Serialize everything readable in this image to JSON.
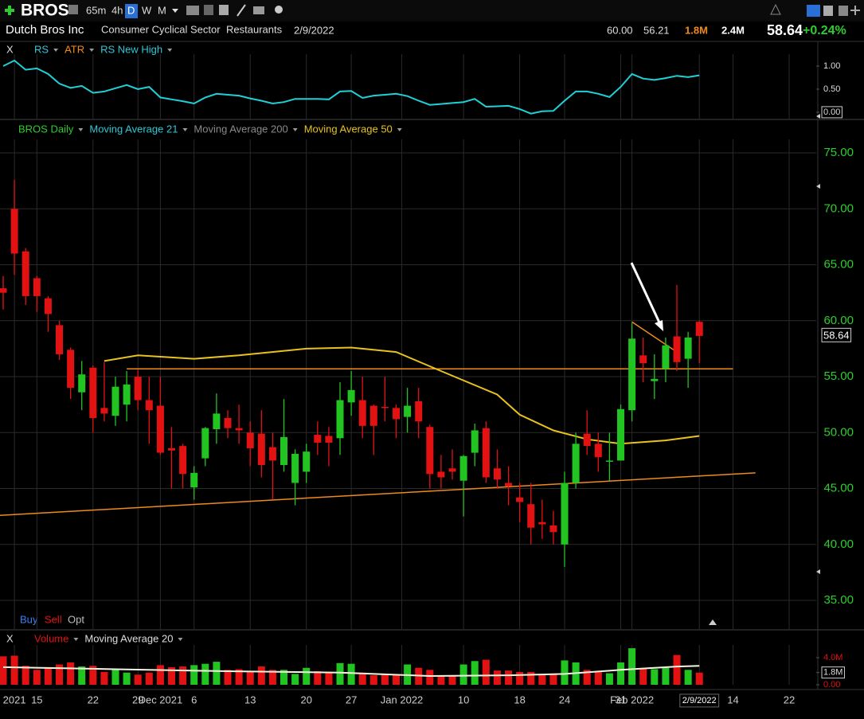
{
  "header": {
    "symbol": "BROS",
    "intervals": [
      "65m",
      "4h",
      "D",
      "W",
      "M"
    ],
    "company": "Dutch Bros Inc",
    "sector": "Consumer Cyclical Sector",
    "industry": "Restaurants",
    "date": "2/9/2022",
    "high": "60.00",
    "low": "56.21",
    "volume": "1.8M",
    "avg_volume": "2.4M",
    "last": "58.64",
    "change": "+0.24%"
  },
  "ui": {
    "close_label": "X",
    "trade_buttons": [
      "Buy",
      "Sell",
      "Opt"
    ]
  },
  "chart_data": [
    {
      "type": "candlestick",
      "legend": [
        {
          "name": "BROS Daily",
          "color": "#2ecc2e"
        },
        {
          "name": "Moving Average 21",
          "color": "#2fc7d6"
        },
        {
          "name": "Moving Average 200",
          "color": "#8a8a8a"
        },
        {
          "name": "Moving Average 50",
          "color": "#e8c21e"
        }
      ],
      "up_color": "#22c422",
      "down_color": "#e21212",
      "x": [
        0,
        1,
        2,
        3,
        4,
        5,
        6,
        7,
        8,
        9,
        10,
        11,
        12,
        13,
        14,
        15,
        16,
        17,
        18,
        19,
        20,
        21,
        22,
        23,
        24,
        25,
        26,
        27,
        28,
        29,
        30,
        31,
        32,
        33,
        34,
        35,
        36,
        37,
        38,
        39,
        40,
        41,
        42,
        43,
        44,
        45,
        46,
        47,
        48,
        49,
        50,
        51,
        52,
        53,
        54,
        55,
        56,
        57,
        58,
        59,
        60,
        61,
        62
      ],
      "open": [
        62.9,
        70.0,
        66.2,
        63.8,
        62.0,
        59.6,
        57.4,
        53.6,
        55.8,
        52.2,
        51.5,
        52.5,
        55.0,
        52.9,
        52.4,
        48.6,
        48.8,
        45.1,
        47.7,
        50.3,
        51.3,
        50.4,
        50.0,
        49.9,
        48.7,
        47.1,
        45.5,
        46.5,
        49.8,
        49.7,
        49.5,
        52.7,
        52.9,
        52.4,
        52.3,
        52.2,
        51.4,
        52.8,
        50.5,
        46.5,
        46.8,
        45.7,
        48.2,
        50.4,
        46.8,
        45.5,
        44.2,
        43.6,
        42.0,
        41.7,
        40.0,
        45.5,
        49.9,
        49.0,
        47.4,
        47.5,
        52.0,
        56.9,
        54.6,
        55.7,
        58.6,
        56.6,
        59.9
      ],
      "high": [
        64.0,
        72.6,
        66.5,
        64.0,
        62.2,
        60.0,
        57.6,
        56.4,
        56.0,
        56.3,
        55.0,
        55.5,
        55.6,
        55.0,
        55.0,
        50.5,
        49.0,
        47.0,
        50.5,
        53.5,
        52.0,
        52.5,
        51.0,
        52.0,
        50.0,
        53.0,
        48.5,
        49.0,
        51.0,
        50.5,
        54.5,
        55.5,
        55.0,
        52.5,
        55.0,
        52.5,
        54.0,
        54.0,
        50.7,
        48.0,
        48.5,
        48.0,
        50.8,
        51.0,
        48.5,
        47.0,
        45.5,
        45.5,
        44.0,
        43.0,
        46.5,
        50.0,
        52.0,
        50.0,
        50.0,
        52.5,
        59.8,
        58.5,
        57.0,
        58.5,
        63.2,
        59.0,
        60.0
      ],
      "low": [
        61.0,
        64.1,
        61.4,
        60.8,
        59.0,
        56.5,
        53.0,
        52.0,
        50.0,
        51.0,
        50.6,
        51.0,
        52.0,
        49.0,
        48.0,
        45.0,
        45.0,
        44.0,
        47.0,
        49.0,
        49.5,
        49.0,
        47.0,
        46.0,
        44.0,
        46.5,
        43.5,
        45.5,
        48.0,
        47.0,
        48.0,
        51.5,
        49.5,
        48.0,
        51.0,
        49.5,
        50.0,
        49.5,
        45.0,
        45.0,
        45.8,
        42.5,
        47.0,
        45.5,
        45.0,
        43.5,
        42.0,
        40.0,
        40.5,
        40.0,
        38.0,
        45.0,
        48.0,
        46.5,
        45.7,
        47.5,
        51.0,
        54.5,
        53.0,
        54.5,
        55.5,
        54.0,
        56.21
      ],
      "close": [
        62.5,
        66.0,
        62.2,
        62.2,
        60.6,
        57.0,
        54.0,
        55.2,
        51.3,
        51.7,
        54.1,
        54.3,
        52.9,
        52.0,
        48.2,
        48.4,
        46.3,
        46.4,
        50.4,
        51.7,
        50.4,
        50.2,
        48.6,
        47.1,
        47.5,
        49.6,
        48.1,
        48.3,
        49.1,
        49.1,
        52.9,
        53.8,
        50.6,
        50.6,
        52.2,
        51.2,
        52.4,
        51.0,
        46.3,
        46.0,
        46.5,
        47.9,
        50.2,
        46.0,
        45.8,
        45.2,
        43.8,
        41.5,
        41.8,
        41.1,
        45.5,
        49.0,
        48.8,
        47.8,
        47.5,
        52.1,
        58.4,
        56.2,
        54.8,
        57.8,
        56.3,
        58.5,
        58.64
      ],
      "series": [
        {
          "color": "#e8c21e",
          "x": [
            9,
            12,
            17,
            21,
            27,
            31,
            35,
            39,
            44,
            46,
            49,
            52,
            55,
            59,
            62
          ],
          "values": [
            56.4,
            56.9,
            56.6,
            56.9,
            57.5,
            57.6,
            57.2,
            55.5,
            53.4,
            51.6,
            50.2,
            49.4,
            49.0,
            49.3,
            49.7
          ]
        }
      ],
      "trendlines": [
        {
          "color": "#f08a1c",
          "x": [
            11,
            65
          ],
          "values": [
            55.7,
            55.7
          ]
        },
        {
          "color": "#f08a1c",
          "x": [
            -0.3,
            67
          ],
          "values": [
            42.6,
            46.4
          ]
        },
        {
          "color": "#f08a1c",
          "x": [
            56,
            60
          ],
          "values": [
            59.9,
            57.2
          ]
        }
      ],
      "xlim": [
        -0.284,
        72.41
      ],
      "ylim": [
        32.44,
        77.85
      ],
      "yticks": [
        {
          "value": 35,
          "label": "35.00"
        },
        {
          "value": 40,
          "label": "40.00"
        },
        {
          "value": 45,
          "label": "45.00"
        },
        {
          "value": 50,
          "label": "50.00"
        },
        {
          "value": 55,
          "label": "55.00"
        },
        {
          "value": 60,
          "label": "60.00"
        },
        {
          "value": 65,
          "label": "65.00"
        },
        {
          "value": 70,
          "label": "70.00"
        },
        {
          "value": 75,
          "label": "75.00"
        }
      ],
      "xticks": [
        {
          "value": 1,
          "label": "2021"
        },
        {
          "value": 3,
          "label": "15"
        },
        {
          "value": 8,
          "label": "22"
        },
        {
          "value": 12,
          "label": "29"
        },
        {
          "value": 14,
          "label": "Dec 2021"
        },
        {
          "value": 17,
          "label": "6"
        },
        {
          "value": 22,
          "label": "13"
        },
        {
          "value": 27,
          "label": "20"
        },
        {
          "value": 31,
          "label": "27"
        },
        {
          "value": 35.5,
          "label": "Jan 2022"
        },
        {
          "value": 41,
          "label": "10"
        },
        {
          "value": 46,
          "label": "18"
        },
        {
          "value": 50,
          "label": "24"
        },
        {
          "value": 55,
          "label": "31"
        },
        {
          "value": 56,
          "label": "Feb 2022"
        },
        {
          "value": 62,
          "label": "2/9/2022",
          "boxed": true
        },
        {
          "value": 65,
          "label": "14"
        },
        {
          "value": 70,
          "label": "22"
        }
      ],
      "grid": true
    },
    {
      "type": "line",
      "legend": [
        {
          "name": "RS",
          "color": "#2fc7d6"
        },
        {
          "name": "ATR",
          "color": "#f08a1c"
        },
        {
          "name": "RS New High",
          "color": "#2fc7d6"
        }
      ],
      "series": [
        {
          "color": "#1fd1d6",
          "values": [
            1.0,
            1.12,
            0.92,
            0.95,
            0.83,
            0.62,
            0.53,
            0.57,
            0.42,
            0.45,
            0.52,
            0.59,
            0.5,
            0.55,
            0.32,
            0.28,
            0.24,
            0.19,
            0.32,
            0.4,
            0.38,
            0.36,
            0.3,
            0.25,
            0.19,
            0.22,
            0.29,
            0.29,
            0.29,
            0.28,
            0.45,
            0.46,
            0.31,
            0.36,
            0.38,
            0.4,
            0.35,
            0.25,
            0.16,
            0.18,
            0.2,
            0.22,
            0.29,
            0.12,
            0.13,
            0.14,
            0.07,
            -0.03,
            0.02,
            0.03,
            0.25,
            0.45,
            0.45,
            0.4,
            0.33,
            0.55,
            0.83,
            0.73,
            0.7,
            0.74,
            0.79,
            0.76,
            0.8
          ]
        }
      ],
      "ylim": [
        -0.155,
        1.224
      ],
      "yticks": [
        {
          "value": 1,
          "label": "1.00"
        },
        {
          "value": 0.5,
          "label": "0.50"
        },
        {
          "value": 0,
          "label": "0.00",
          "boxed": true
        }
      ]
    },
    {
      "type": "bar",
      "legend": [
        {
          "name": "Volume",
          "color": "#e21212"
        },
        {
          "name": "Moving Average 20",
          "color": "#dddddd"
        }
      ],
      "values": [
        4200000,
        4300000,
        2800000,
        2200000,
        2600000,
        3000000,
        3300000,
        2700000,
        2800000,
        1900000,
        2300000,
        1800000,
        1500000,
        1800000,
        2900000,
        2600000,
        2700000,
        2900000,
        3100000,
        3400000,
        2200000,
        2300000,
        2000000,
        2700000,
        2200000,
        2200000,
        1600000,
        2500000,
        2000000,
        1900000,
        3200000,
        3100000,
        1800000,
        1400000,
        1600000,
        1500000,
        3000000,
        2500000,
        2200000,
        1400000,
        1400000,
        3000000,
        3500000,
        3700000,
        2100000,
        2100000,
        1900000,
        1900000,
        1600000,
        1500000,
        3600000,
        3300000,
        2200000,
        1900000,
        1700000,
        3300000,
        5400000,
        2400000,
        2300000,
        2500000,
        4400000,
        2200000,
        1800000
      ],
      "series": [
        {
          "color": "#f4f4e0",
          "x": [
            0,
            10,
            20,
            30,
            38,
            45,
            50,
            55,
            60,
            62
          ],
          "values": [
            2600000,
            2300000,
            2000000,
            1800000,
            1300000,
            1400000,
            1600000,
            2200000,
            2700000,
            2800000
          ]
        }
      ],
      "ylim": [
        0,
        5650000
      ],
      "yticks": [
        {
          "value": 4000000,
          "label": "4.0M"
        },
        {
          "value": 1800000,
          "label": "1.8M",
          "boxed": true
        },
        {
          "value": 0,
          "label": "0.00"
        }
      ]
    }
  ]
}
